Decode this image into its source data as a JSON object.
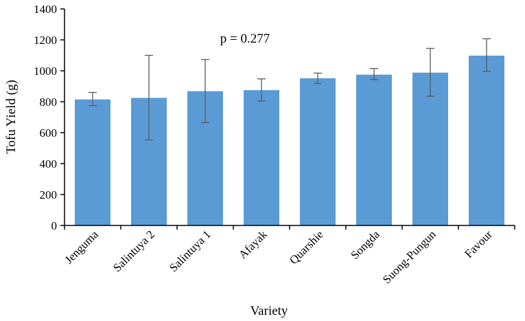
{
  "chart_data": {
    "type": "bar",
    "title": "",
    "xlabel": "Variety",
    "ylabel": "Tofu Yield (g)",
    "ylim": [
      0,
      1400
    ],
    "yticks": [
      0,
      200,
      400,
      600,
      800,
      1000,
      1200,
      1400
    ],
    "ytick_labels": [
      "0",
      "200",
      "400",
      "600",
      "800",
      "1000",
      "1200",
      "1400"
    ],
    "categories": [
      "Jenguma",
      "Salintuya 2",
      "Salintuya 1",
      "Afayak",
      "Quarshie",
      "Songda",
      "Suong-Pungun",
      "Favour"
    ],
    "values": [
      815,
      825,
      868,
      875,
      952,
      975,
      988,
      1098
    ],
    "error_low": [
      775,
      553,
      665,
      805,
      918,
      943,
      835,
      997
    ],
    "error_high": [
      860,
      1100,
      1073,
      948,
      985,
      1015,
      1145,
      1207
    ],
    "annotation": "p = 0.277",
    "grid": false,
    "bar_color": "#5B9BD5",
    "error_bar_color": "#595959"
  }
}
